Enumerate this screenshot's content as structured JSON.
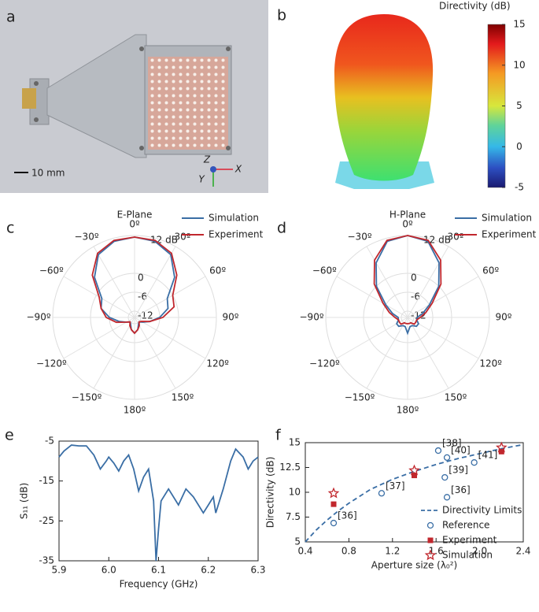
{
  "chart_data": [
    {
      "type": "photo",
      "panel": "a",
      "scale_label": "10 mm",
      "axis_labels": [
        "Z",
        "X",
        "Y"
      ]
    },
    {
      "type": "pattern3d",
      "panel": "b",
      "colorbar_title": "Directivity (dB)",
      "clim": [
        -5,
        15
      ],
      "cticks": [
        -5,
        0,
        5,
        10,
        15
      ]
    },
    {
      "type": "polar",
      "panel": "c",
      "title": "E-Plane",
      "angles": [
        0,
        15,
        30,
        45,
        60,
        75,
        90,
        105,
        120,
        135,
        150,
        165,
        180,
        195,
        210,
        225,
        240,
        255,
        270,
        285,
        300,
        315,
        330,
        345
      ],
      "angle_ticks": [
        {
          "value": 0,
          "label": "0º"
        },
        {
          "value": 30,
          "label": "30º"
        },
        {
          "value": 60,
          "label": "60º"
        },
        {
          "value": 90,
          "label": "90º"
        },
        {
          "value": 120,
          "label": "120º"
        },
        {
          "value": 150,
          "label": "150º"
        },
        {
          "value": 180,
          "label": "180º"
        },
        {
          "value": -150,
          "label": "−150º"
        },
        {
          "value": -120,
          "label": "−120º"
        },
        {
          "value": -90,
          "label": "−90º"
        },
        {
          "value": -60,
          "label": "−60º"
        },
        {
          "value": -30,
          "label": "−30º"
        }
      ],
      "rlim": [
        -14,
        12
      ],
      "rticks": [
        {
          "value": 12,
          "label": "12 dB"
        },
        0,
        -6,
        -12
      ],
      "series": [
        {
          "name": "Simulation",
          "color": "#3a6ea5",
          "values": [
            11.5,
            11,
            9,
            4,
            -2,
            -3,
            -6,
            -9,
            -11,
            -12,
            -11.5,
            -10,
            -9,
            -10,
            -11.5,
            -12,
            -11,
            -9,
            -6,
            -3,
            -2,
            4,
            9,
            11
          ]
        },
        {
          "name": "Experiment",
          "color": "#c1272d",
          "values": [
            11.5,
            11.3,
            9.5,
            5,
            0,
            -1,
            -5,
            -9,
            -11.5,
            -12,
            -11,
            -10,
            -9,
            -10,
            -11,
            -12,
            -11,
            -8,
            -5,
            -3,
            -1,
            5,
            9.5,
            11.3
          ]
        }
      ]
    },
    {
      "type": "polar",
      "panel": "d",
      "title": "H-Plane",
      "angles": [
        0,
        15,
        30,
        45,
        60,
        75,
        90,
        105,
        120,
        135,
        150,
        165,
        180,
        195,
        210,
        225,
        240,
        255,
        270,
        285,
        300,
        315,
        330,
        345
      ],
      "angle_ticks": [
        {
          "value": 0,
          "label": "0º"
        },
        {
          "value": 30,
          "label": "30º"
        },
        {
          "value": 60,
          "label": "60º"
        },
        {
          "value": 90,
          "label": "90º"
        },
        {
          "value": 120,
          "label": "120º"
        },
        {
          "value": 150,
          "label": "150º"
        },
        {
          "value": 180,
          "label": "180º"
        },
        {
          "value": -150,
          "label": "−150º"
        },
        {
          "value": -120,
          "label": "−120º"
        },
        {
          "value": -90,
          "label": "−90º"
        },
        {
          "value": -60,
          "label": "−60º"
        },
        {
          "value": -30,
          "label": "−30º"
        }
      ],
      "rlim": [
        -14,
        12
      ],
      "rticks": [
        {
          "value": 12,
          "label": "12 dB"
        },
        0,
        -6,
        -12
      ],
      "series": [
        {
          "name": "Simulation",
          "color": "#3a6ea5",
          "values": [
            12,
            11,
            6,
            0,
            -6,
            -9,
            -11,
            -11,
            -10,
            -10,
            -11,
            -11,
            -9,
            -11,
            -11,
            -10,
            -10,
            -11,
            -11,
            -9,
            -6,
            0,
            6,
            11
          ]
        },
        {
          "name": "Experiment",
          "color": "#c1272d",
          "values": [
            12,
            11.3,
            7,
            1,
            -5,
            -8,
            -10,
            -11,
            -11,
            -11,
            -12,
            -12,
            -12,
            -12,
            -12,
            -11,
            -11,
            -11,
            -10,
            -8,
            -5,
            1,
            7,
            11.3
          ]
        }
      ]
    },
    {
      "type": "line",
      "panel": "e",
      "xlabel": "Frequency (GHz)",
      "ylabel": "S₁₁ (dB)",
      "color": "#3a6ea5",
      "xlim": [
        5.9,
        6.3
      ],
      "xticks": [
        5.9,
        {
          "value": 6,
          "label": "6.0"
        },
        6.1,
        6.2,
        6.3
      ],
      "ylim": [
        -35,
        -5
      ],
      "yticks": [
        -35,
        -25,
        -15,
        -5
      ],
      "x": [
        5.9,
        5.91,
        5.925,
        5.94,
        5.955,
        5.97,
        5.983,
        5.995,
        6.0,
        6.01,
        6.02,
        6.03,
        6.04,
        6.05,
        6.06,
        6.07,
        6.08,
        6.09,
        6.095,
        6.1,
        6.105,
        6.12,
        6.14,
        6.155,
        6.17,
        6.19,
        6.2,
        6.21,
        6.215,
        6.23,
        6.245,
        6.255,
        6.27,
        6.28,
        6.29,
        6.3
      ],
      "values": [
        -9,
        -7.5,
        -6,
        -6.2,
        -6.2,
        -8.5,
        -12,
        -10,
        -9,
        -10.5,
        -12.5,
        -10,
        -8.5,
        -12,
        -17.5,
        -14,
        -12,
        -20,
        -35,
        -27,
        -20,
        -17,
        -21,
        -17,
        -19,
        -23,
        -21,
        -19,
        -23,
        -17,
        -10,
        -7,
        -9,
        -12,
        -10,
        -9
      ]
    },
    {
      "type": "scatter",
      "panel": "f",
      "xlabel": "Aperture size (λ₀²)",
      "ylabel": "Directivity (dB)",
      "xlim": [
        0.4,
        2.4
      ],
      "xticks": [
        0.4,
        0.8,
        1.2,
        1.6,
        {
          "value": 2,
          "label": "2.0"
        },
        2.4
      ],
      "ylim": [
        5,
        15
      ],
      "yticks": [
        5,
        7.5,
        10,
        12.5,
        15
      ],
      "series": [
        {
          "name": "Directivity Limits",
          "color": "#3a6ea5",
          "marker": "dashed-line",
          "x": [
            0.4,
            0.5,
            0.6,
            0.7,
            0.8,
            1.0,
            1.2,
            1.4,
            1.6,
            1.8,
            2.0,
            2.2,
            2.4
          ],
          "values": [
            5,
            6.2,
            7.2,
            8.1,
            8.9,
            10.3,
            11.3,
            12.1,
            12.8,
            13.4,
            13.9,
            14.4,
            14.8
          ]
        },
        {
          "name": "Reference",
          "color": "#3a6ea5",
          "marker": "circle",
          "x": [
            0.66,
            1.1,
            1.62,
            1.7,
            1.68,
            1.7,
            1.95
          ],
          "values": [
            6.9,
            9.9,
            14.2,
            13.5,
            11.5,
            9.5,
            13.0
          ],
          "point_labels": [
            "[36]",
            "[37]",
            "[38]",
            "[40]",
            "[39]",
            "[36]",
            "[41]"
          ]
        },
        {
          "name": "Experiment",
          "color": "#c1272d",
          "marker": "square",
          "x": [
            0.66,
            1.4,
            2.2
          ],
          "values": [
            8.8,
            11.7,
            14.1
          ]
        },
        {
          "name": "Simulation",
          "color": "#c1272d",
          "marker": "star",
          "x": [
            0.66,
            1.4,
            2.2
          ],
          "values": [
            9.9,
            12.2,
            14.5
          ]
        }
      ]
    }
  ]
}
